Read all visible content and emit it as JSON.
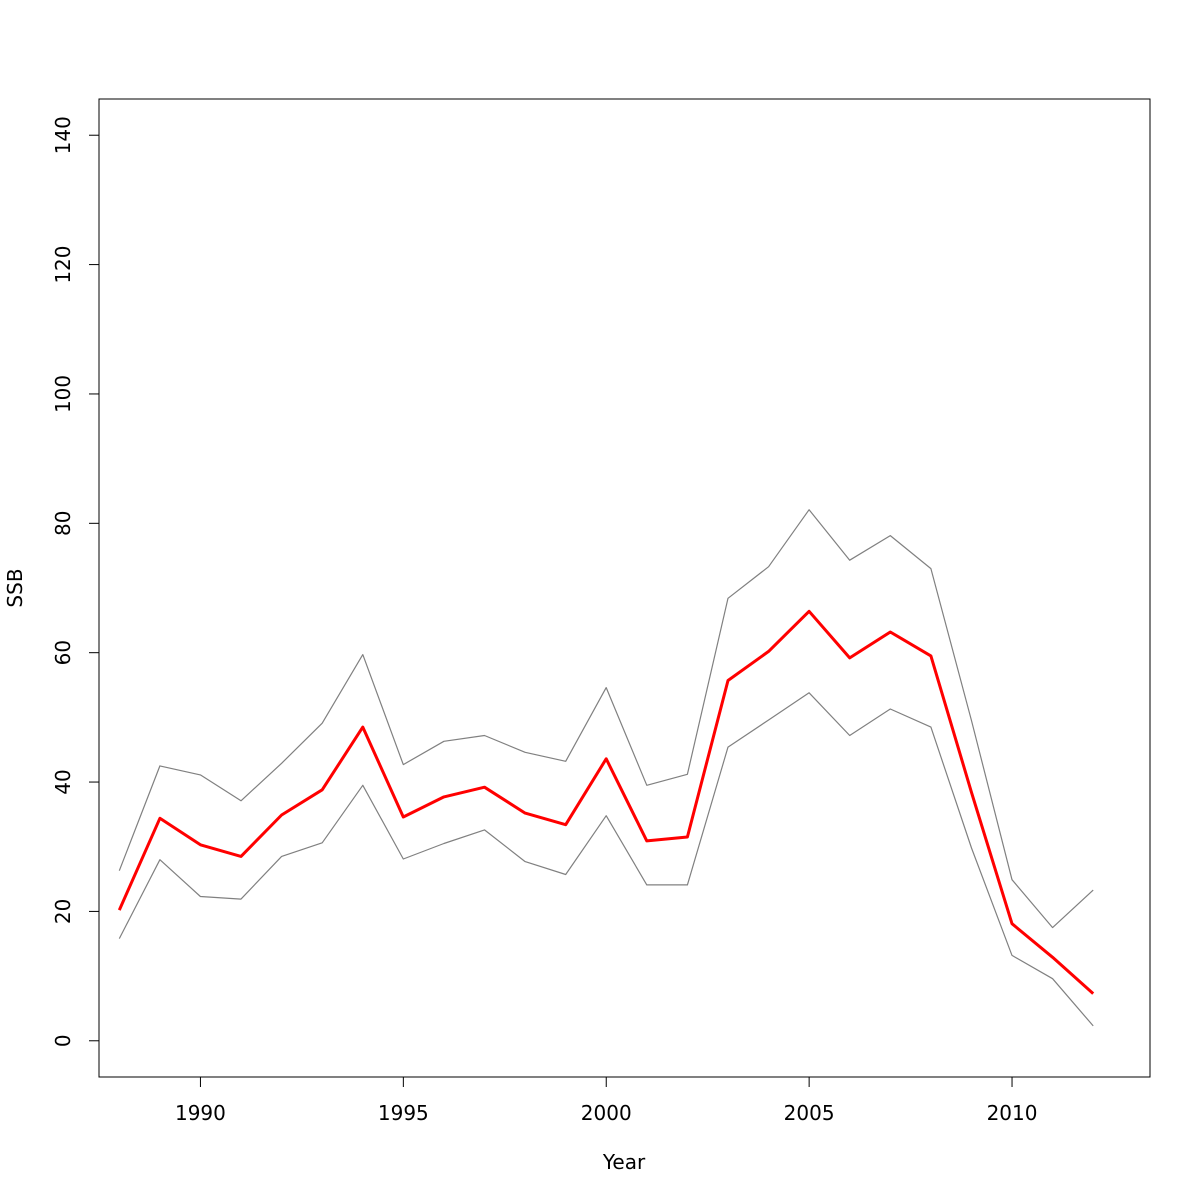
{
  "chart_data": {
    "type": "line",
    "title": "",
    "xlabel": "Year",
    "ylabel": "SSB",
    "xlim": [
      1987.5,
      2013.4
    ],
    "ylim": [
      -5.6,
      145.6
    ],
    "x_ticks": [
      "1990",
      "1995",
      "2000",
      "2005",
      "2010"
    ],
    "y_ticks": [
      "0",
      "20",
      "40",
      "60",
      "80",
      "100",
      "120",
      "140"
    ],
    "grid": false,
    "legend": "none",
    "x": [
      1988,
      1989,
      1990,
      1991,
      1992,
      1993,
      1994,
      1995,
      1996,
      1997,
      1998,
      1999,
      2000,
      2001,
      2002,
      2003,
      2004,
      2005,
      2006,
      2007,
      2008,
      2009,
      2010,
      2011,
      2012
    ],
    "series": [
      {
        "role": "upper",
        "color": "#808080",
        "values": [
          26.3,
          42.5,
          41.1,
          37.1,
          42.9,
          49.1,
          59.7,
          42.7,
          46.3,
          47.2,
          44.6,
          43.2,
          54.6,
          39.5,
          41.2,
          68.4,
          73.3,
          82.1,
          74.3,
          78.1,
          73.0,
          49.5,
          24.9,
          17.5,
          23.3
        ]
      },
      {
        "role": "estimate",
        "color": "#ff0000",
        "values": [
          20.2,
          34.4,
          30.3,
          28.5,
          34.9,
          38.8,
          48.5,
          34.6,
          37.7,
          39.2,
          35.2,
          33.4,
          43.6,
          30.9,
          31.5,
          55.7,
          60.2,
          66.4,
          59.2,
          63.2,
          59.5,
          38.4,
          18.1,
          12.9,
          7.3
        ]
      },
      {
        "role": "lower",
        "color": "#808080",
        "values": [
          15.8,
          28.0,
          22.3,
          21.9,
          28.5,
          30.6,
          39.5,
          28.1,
          30.5,
          32.6,
          27.7,
          25.7,
          34.8,
          24.1,
          24.1,
          45.4,
          49.6,
          53.8,
          47.2,
          51.3,
          48.5,
          29.8,
          13.2,
          9.6,
          2.3
        ]
      }
    ]
  }
}
